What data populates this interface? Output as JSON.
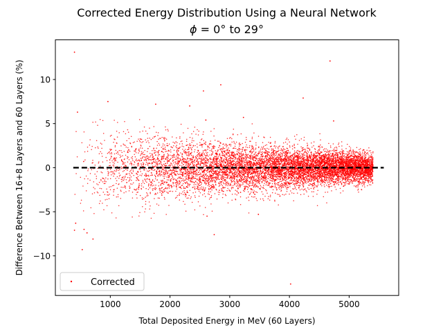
{
  "chart_data": {
    "type": "scatter",
    "title": "Corrected Energy Distribution Using a Neural Network",
    "subtitle_text": " = 0° to 29°",
    "subtitle_symbol": "ϕ",
    "xlabel": "Total Deposited Energy in MeV (60 Layers)",
    "ylabel": "Difference Between 16+8 Layers and 60 Layers (%)",
    "xlim": [
      80,
      5830
    ],
    "ylim": [
      -14.5,
      14.5
    ],
    "xticks": [
      1000,
      2000,
      3000,
      4000,
      5000
    ],
    "xtick_labels": [
      "1000",
      "2000",
      "3000",
      "4000",
      "5000"
    ],
    "yticks": [
      -10,
      -5,
      0,
      5,
      10
    ],
    "ytick_labels": [
      "−10",
      "−5",
      "0",
      "5",
      "10"
    ],
    "legend_position": "lower-left",
    "grid": false,
    "series": [
      {
        "name": "Corrected",
        "color": "#ff0000",
        "marker": "dot",
        "x_range": [
          380,
          5400
        ],
        "typical_spread_percent": {
          "low_energy": 2.5,
          "high_energy": 0.8
        },
        "outliers": [
          {
            "x": 400,
            "y": 13.1
          },
          {
            "x": 4680,
            "y": 12.1
          },
          {
            "x": 2850,
            "y": 9.4
          },
          {
            "x": 2560,
            "y": 8.7
          },
          {
            "x": 4230,
            "y": 7.9
          },
          {
            "x": 960,
            "y": 7.5
          },
          {
            "x": 1760,
            "y": 7.2
          },
          {
            "x": 2330,
            "y": 7.0
          },
          {
            "x": 450,
            "y": 6.3
          },
          {
            "x": 3230,
            "y": 5.7
          },
          {
            "x": 2600,
            "y": 5.4
          },
          {
            "x": 4740,
            "y": 5.3
          },
          {
            "x": 420,
            "y": -6.3
          },
          {
            "x": 400,
            "y": -7.1
          },
          {
            "x": 560,
            "y": -7.0
          },
          {
            "x": 610,
            "y": -7.4
          },
          {
            "x": 710,
            "y": -8.1
          },
          {
            "x": 530,
            "y": -9.3
          },
          {
            "x": 2740,
            "y": -7.6
          },
          {
            "x": 2620,
            "y": -5.5
          },
          {
            "x": 3480,
            "y": -5.3
          },
          {
            "x": 4020,
            "y": -13.2
          }
        ]
      },
      {
        "name": "",
        "type": "line",
        "color": "#000000",
        "style": "dashed",
        "x": [
          380,
          5580
        ],
        "y": [
          0,
          0
        ]
      }
    ]
  }
}
